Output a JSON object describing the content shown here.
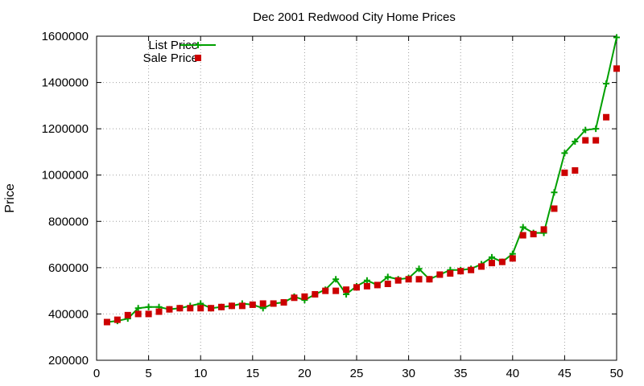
{
  "chart_data": {
    "type": "line",
    "title": "Dec 2001 Redwood City Home Prices",
    "xlabel": "",
    "ylabel": "Price",
    "xlim": [
      0,
      50
    ],
    "ylim": [
      200000,
      1600000
    ],
    "xticks": [
      0,
      5,
      10,
      15,
      20,
      25,
      30,
      35,
      40,
      45,
      50
    ],
    "yticks": [
      200000,
      400000,
      600000,
      800000,
      1000000,
      1200000,
      1400000,
      1600000
    ],
    "grid": true,
    "legend_position": "top-left",
    "series": [
      {
        "name": "List Price",
        "style": "line-with-plus-markers",
        "color": "#00a000",
        "x": [
          1,
          2,
          3,
          4,
          5,
          6,
          7,
          8,
          9,
          10,
          11,
          12,
          13,
          14,
          15,
          16,
          17,
          18,
          19,
          20,
          21,
          22,
          23,
          24,
          25,
          26,
          27,
          28,
          29,
          30,
          31,
          32,
          33,
          34,
          35,
          36,
          37,
          38,
          39,
          40,
          41,
          42,
          43,
          44,
          45,
          46,
          47,
          48,
          49,
          50
        ],
        "values": [
          365000,
          370000,
          380000,
          425000,
          430000,
          430000,
          420000,
          425000,
          435000,
          445000,
          425000,
          430000,
          435000,
          445000,
          440000,
          425000,
          445000,
          450000,
          475000,
          460000,
          485000,
          505000,
          550000,
          485000,
          520000,
          545000,
          525000,
          560000,
          550000,
          555000,
          595000,
          550000,
          570000,
          590000,
          590000,
          595000,
          615000,
          645000,
          625000,
          660000,
          775000,
          750000,
          750000,
          925000,
          1095000,
          1145000,
          1195000,
          1200000,
          1395000,
          1595000
        ]
      },
      {
        "name": "Sale Price",
        "style": "square-markers",
        "color": "#cc0000",
        "x": [
          1,
          2,
          3,
          4,
          5,
          6,
          7,
          8,
          9,
          10,
          11,
          12,
          13,
          14,
          15,
          16,
          17,
          18,
          19,
          20,
          21,
          22,
          23,
          24,
          25,
          26,
          27,
          28,
          29,
          30,
          31,
          32,
          33,
          34,
          35,
          36,
          37,
          38,
          39,
          40,
          41,
          42,
          43,
          44,
          45,
          46,
          47,
          48,
          49,
          50
        ],
        "values": [
          365000,
          375000,
          395000,
          400000,
          400000,
          410000,
          420000,
          425000,
          425000,
          425000,
          425000,
          430000,
          435000,
          435000,
          440000,
          445000,
          445000,
          450000,
          470000,
          475000,
          485000,
          500000,
          500000,
          505000,
          515000,
          520000,
          525000,
          530000,
          545000,
          550000,
          550000,
          550000,
          570000,
          575000,
          585000,
          590000,
          605000,
          620000,
          625000,
          640000,
          740000,
          745000,
          765000,
          855000,
          1010000,
          1020000,
          1150000,
          1150000,
          1250000,
          1460000
        ]
      }
    ]
  }
}
